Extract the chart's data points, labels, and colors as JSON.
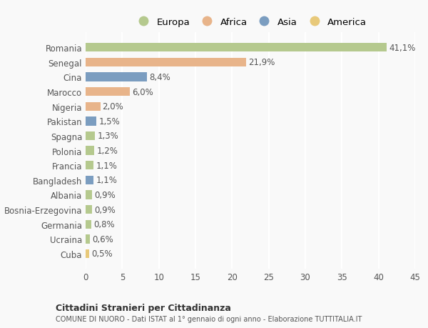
{
  "categories": [
    "Romania",
    "Senegal",
    "Cina",
    "Marocco",
    "Nigeria",
    "Pakistan",
    "Spagna",
    "Polonia",
    "Francia",
    "Bangladesh",
    "Albania",
    "Bosnia-Erzegovina",
    "Germania",
    "Ucraina",
    "Cuba"
  ],
  "values": [
    41.1,
    21.9,
    8.4,
    6.0,
    2.0,
    1.5,
    1.3,
    1.2,
    1.1,
    1.1,
    0.9,
    0.9,
    0.8,
    0.6,
    0.5
  ],
  "labels": [
    "41,1%",
    "21,9%",
    "8,4%",
    "6,0%",
    "2,0%",
    "1,5%",
    "1,3%",
    "1,2%",
    "1,1%",
    "1,1%",
    "0,9%",
    "0,9%",
    "0,8%",
    "0,6%",
    "0,5%"
  ],
  "continents": [
    "Europa",
    "Africa",
    "Asia",
    "Africa",
    "Africa",
    "Asia",
    "Europa",
    "Europa",
    "Europa",
    "Asia",
    "Europa",
    "Europa",
    "Europa",
    "Europa",
    "America"
  ],
  "colors": {
    "Europa": "#b5c98e",
    "Africa": "#e8b48a",
    "Asia": "#7b9dc0",
    "America": "#e8c97a"
  },
  "xlim": [
    0,
    45
  ],
  "xticks": [
    0,
    5,
    10,
    15,
    20,
    25,
    30,
    35,
    40,
    45
  ],
  "title": "Cittadini Stranieri per Cittadinanza",
  "subtitle": "COMUNE DI NUORO - Dati ISTAT al 1° gennaio di ogni anno - Elaborazione TUTTITALIA.IT",
  "background_color": "#f9f9f9",
  "grid_color": "#ffffff",
  "bar_height": 0.6,
  "label_fontsize": 8.5,
  "tick_fontsize": 8.5,
  "legend_order": [
    "Europa",
    "Africa",
    "Asia",
    "America"
  ]
}
